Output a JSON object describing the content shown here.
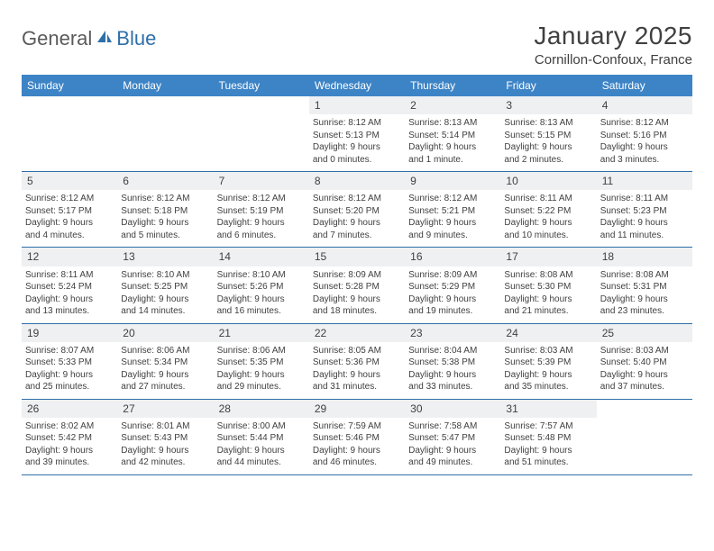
{
  "brand": {
    "part1": "General",
    "part2": "Blue"
  },
  "title": "January 2025",
  "location": "Cornillon-Confoux, France",
  "colors": {
    "header_bg": "#3d84c6",
    "header_text": "#ffffff",
    "rule": "#2f6fa8",
    "daynum_bg": "#eef0f2",
    "body_text": "#404040",
    "logo_blue": "#2f6fa8"
  },
  "weekdays": [
    "Sunday",
    "Monday",
    "Tuesday",
    "Wednesday",
    "Thursday",
    "Friday",
    "Saturday"
  ],
  "weeks": [
    [
      null,
      null,
      null,
      {
        "n": "1",
        "sr": "8:12 AM",
        "ss": "5:13 PM",
        "dl1": "Daylight: 9 hours",
        "dl2": "and 0 minutes."
      },
      {
        "n": "2",
        "sr": "8:13 AM",
        "ss": "5:14 PM",
        "dl1": "Daylight: 9 hours",
        "dl2": "and 1 minute."
      },
      {
        "n": "3",
        "sr": "8:13 AM",
        "ss": "5:15 PM",
        "dl1": "Daylight: 9 hours",
        "dl2": "and 2 minutes."
      },
      {
        "n": "4",
        "sr": "8:12 AM",
        "ss": "5:16 PM",
        "dl1": "Daylight: 9 hours",
        "dl2": "and 3 minutes."
      }
    ],
    [
      {
        "n": "5",
        "sr": "8:12 AM",
        "ss": "5:17 PM",
        "dl1": "Daylight: 9 hours",
        "dl2": "and 4 minutes."
      },
      {
        "n": "6",
        "sr": "8:12 AM",
        "ss": "5:18 PM",
        "dl1": "Daylight: 9 hours",
        "dl2": "and 5 minutes."
      },
      {
        "n": "7",
        "sr": "8:12 AM",
        "ss": "5:19 PM",
        "dl1": "Daylight: 9 hours",
        "dl2": "and 6 minutes."
      },
      {
        "n": "8",
        "sr": "8:12 AM",
        "ss": "5:20 PM",
        "dl1": "Daylight: 9 hours",
        "dl2": "and 7 minutes."
      },
      {
        "n": "9",
        "sr": "8:12 AM",
        "ss": "5:21 PM",
        "dl1": "Daylight: 9 hours",
        "dl2": "and 9 minutes."
      },
      {
        "n": "10",
        "sr": "8:11 AM",
        "ss": "5:22 PM",
        "dl1": "Daylight: 9 hours",
        "dl2": "and 10 minutes."
      },
      {
        "n": "11",
        "sr": "8:11 AM",
        "ss": "5:23 PM",
        "dl1": "Daylight: 9 hours",
        "dl2": "and 11 minutes."
      }
    ],
    [
      {
        "n": "12",
        "sr": "8:11 AM",
        "ss": "5:24 PM",
        "dl1": "Daylight: 9 hours",
        "dl2": "and 13 minutes."
      },
      {
        "n": "13",
        "sr": "8:10 AM",
        "ss": "5:25 PM",
        "dl1": "Daylight: 9 hours",
        "dl2": "and 14 minutes."
      },
      {
        "n": "14",
        "sr": "8:10 AM",
        "ss": "5:26 PM",
        "dl1": "Daylight: 9 hours",
        "dl2": "and 16 minutes."
      },
      {
        "n": "15",
        "sr": "8:09 AM",
        "ss": "5:28 PM",
        "dl1": "Daylight: 9 hours",
        "dl2": "and 18 minutes."
      },
      {
        "n": "16",
        "sr": "8:09 AM",
        "ss": "5:29 PM",
        "dl1": "Daylight: 9 hours",
        "dl2": "and 19 minutes."
      },
      {
        "n": "17",
        "sr": "8:08 AM",
        "ss": "5:30 PM",
        "dl1": "Daylight: 9 hours",
        "dl2": "and 21 minutes."
      },
      {
        "n": "18",
        "sr": "8:08 AM",
        "ss": "5:31 PM",
        "dl1": "Daylight: 9 hours",
        "dl2": "and 23 minutes."
      }
    ],
    [
      {
        "n": "19",
        "sr": "8:07 AM",
        "ss": "5:33 PM",
        "dl1": "Daylight: 9 hours",
        "dl2": "and 25 minutes."
      },
      {
        "n": "20",
        "sr": "8:06 AM",
        "ss": "5:34 PM",
        "dl1": "Daylight: 9 hours",
        "dl2": "and 27 minutes."
      },
      {
        "n": "21",
        "sr": "8:06 AM",
        "ss": "5:35 PM",
        "dl1": "Daylight: 9 hours",
        "dl2": "and 29 minutes."
      },
      {
        "n": "22",
        "sr": "8:05 AM",
        "ss": "5:36 PM",
        "dl1": "Daylight: 9 hours",
        "dl2": "and 31 minutes."
      },
      {
        "n": "23",
        "sr": "8:04 AM",
        "ss": "5:38 PM",
        "dl1": "Daylight: 9 hours",
        "dl2": "and 33 minutes."
      },
      {
        "n": "24",
        "sr": "8:03 AM",
        "ss": "5:39 PM",
        "dl1": "Daylight: 9 hours",
        "dl2": "and 35 minutes."
      },
      {
        "n": "25",
        "sr": "8:03 AM",
        "ss": "5:40 PM",
        "dl1": "Daylight: 9 hours",
        "dl2": "and 37 minutes."
      }
    ],
    [
      {
        "n": "26",
        "sr": "8:02 AM",
        "ss": "5:42 PM",
        "dl1": "Daylight: 9 hours",
        "dl2": "and 39 minutes."
      },
      {
        "n": "27",
        "sr": "8:01 AM",
        "ss": "5:43 PM",
        "dl1": "Daylight: 9 hours",
        "dl2": "and 42 minutes."
      },
      {
        "n": "28",
        "sr": "8:00 AM",
        "ss": "5:44 PM",
        "dl1": "Daylight: 9 hours",
        "dl2": "and 44 minutes."
      },
      {
        "n": "29",
        "sr": "7:59 AM",
        "ss": "5:46 PM",
        "dl1": "Daylight: 9 hours",
        "dl2": "and 46 minutes."
      },
      {
        "n": "30",
        "sr": "7:58 AM",
        "ss": "5:47 PM",
        "dl1": "Daylight: 9 hours",
        "dl2": "and 49 minutes."
      },
      {
        "n": "31",
        "sr": "7:57 AM",
        "ss": "5:48 PM",
        "dl1": "Daylight: 9 hours",
        "dl2": "and 51 minutes."
      },
      null
    ]
  ],
  "labels": {
    "sunrise": "Sunrise: ",
    "sunset": "Sunset: "
  }
}
